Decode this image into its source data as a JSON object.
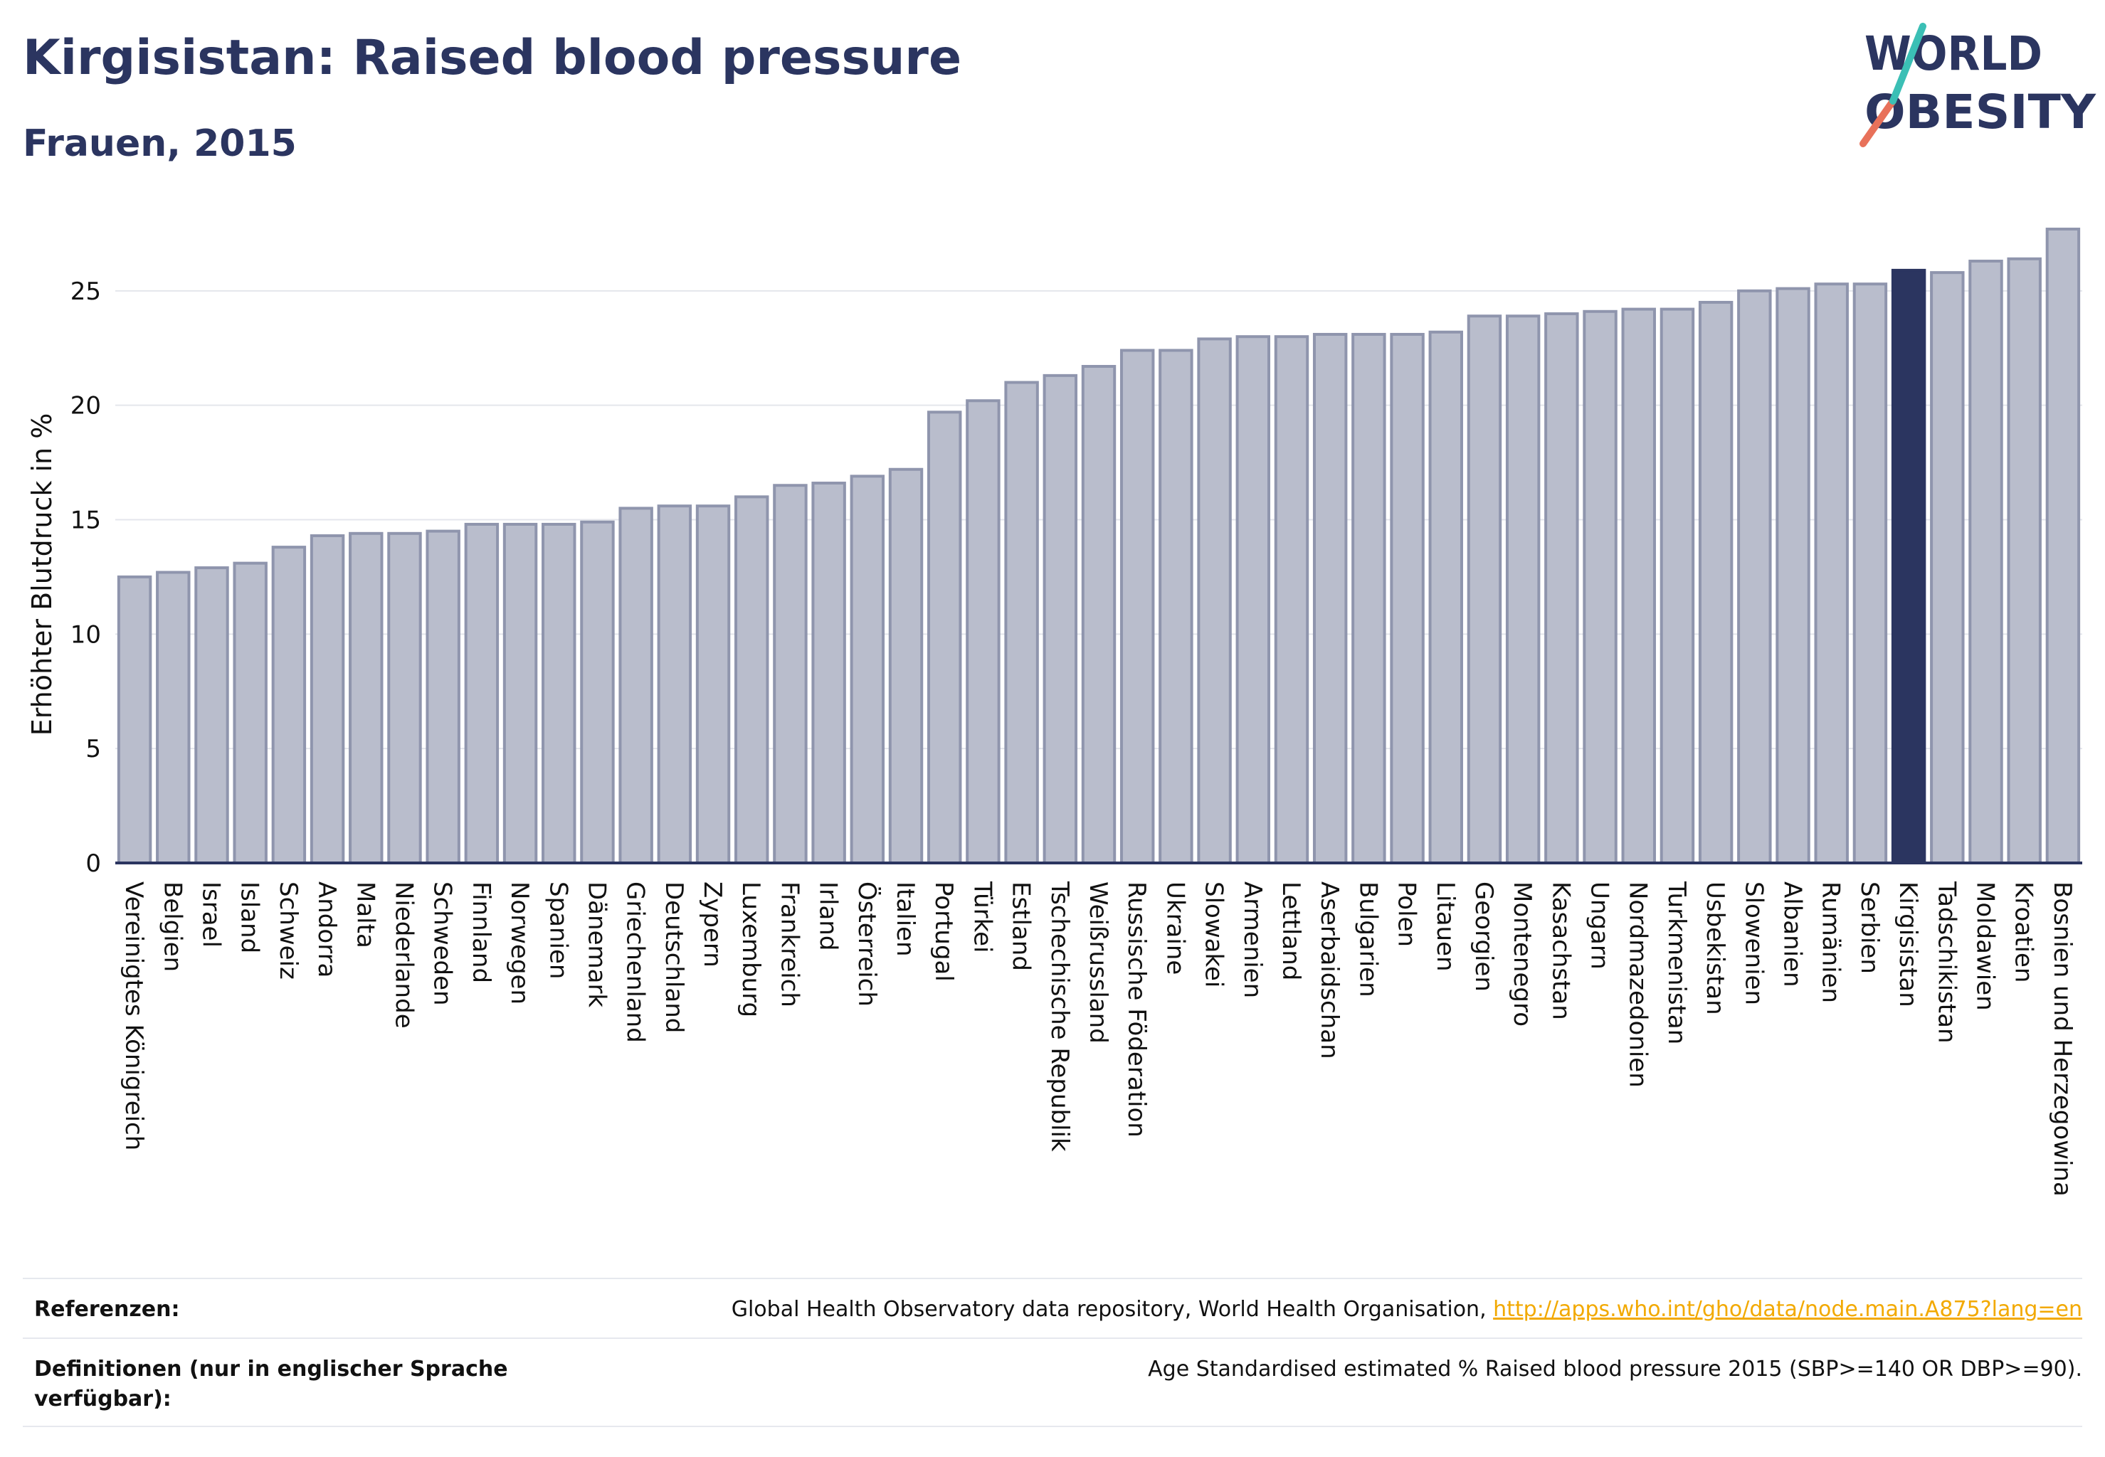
{
  "header": {
    "title": "Kirgisistan: Raised blood pressure",
    "subtitle": "Frauen, 2015"
  },
  "logo": {
    "line1": "WORLD",
    "line2": "OBESITY"
  },
  "footer": {
    "references_label": "Referenzen:",
    "references_text": "Global Health Observatory data repository, World Health Organisation, ",
    "references_link": "http://apps.who.int/gho/data/node.main.A875?lang=en",
    "definitions_label": "Definitionen (nur in englischer Sprache verfügbar):",
    "definitions_text": "Age Standardised estimated % Raised blood pressure 2015 (SBP>=140 OR DBP>=90)."
  },
  "colors": {
    "bar": "#b9bdcc",
    "bar_stroke": "#8f95ad",
    "highlight": "#2b3560",
    "axis": "#2b3560",
    "grid": "#e4e6ec"
  },
  "chart_data": {
    "type": "bar",
    "title": "",
    "xlabel": "",
    "ylabel": "Erhöhter Blutdruck in %",
    "ylim": [
      0,
      27.7
    ],
    "yticks": [
      0,
      5,
      10,
      15,
      20,
      25
    ],
    "grid": true,
    "highlight": "Kirgisistan",
    "categories": [
      "Vereinigtes Königreich",
      "Belgien",
      "Israel",
      "Island",
      "Schweiz",
      "Andorra",
      "Malta",
      "Niederlande",
      "Schweden",
      "Finnland",
      "Norwegen",
      "Spanien",
      "Dänemark",
      "Griechenland",
      "Deutschland",
      "Zypern",
      "Luxemburg",
      "Frankreich",
      "Irland",
      "Österreich",
      "Italien",
      "Portugal",
      "Türkei",
      "Estland",
      "Tschechische Republik",
      "Weißrussland",
      "Russische Föderation",
      "Ukraine",
      "Slowakei",
      "Armenien",
      "Lettland",
      "Aserbaidschan",
      "Bulgarien",
      "Polen",
      "Litauen",
      "Georgien",
      "Montenegro",
      "Kasachstan",
      "Ungarn",
      "Nordmazedonien",
      "Turkmenistan",
      "Usbekistan",
      "Slowenien",
      "Albanien",
      "Rumänien",
      "Serbien",
      "Kirgisistan",
      "Tadschikistan",
      "Moldawien",
      "Kroatien",
      "Bosnien und Herzegowina"
    ],
    "values": [
      12.5,
      12.7,
      12.9,
      13.1,
      13.8,
      14.3,
      14.4,
      14.4,
      14.5,
      14.8,
      14.8,
      14.8,
      14.9,
      15.5,
      15.6,
      15.6,
      16.0,
      16.5,
      16.6,
      16.9,
      17.2,
      19.7,
      20.2,
      21.0,
      21.3,
      21.7,
      22.4,
      22.4,
      22.9,
      23.0,
      23.0,
      23.1,
      23.1,
      23.1,
      23.2,
      23.9,
      23.9,
      24.0,
      24.1,
      24.2,
      24.2,
      24.5,
      25.0,
      25.1,
      25.3,
      25.3,
      25.9,
      25.8,
      26.3,
      26.4,
      27.7
    ]
  }
}
